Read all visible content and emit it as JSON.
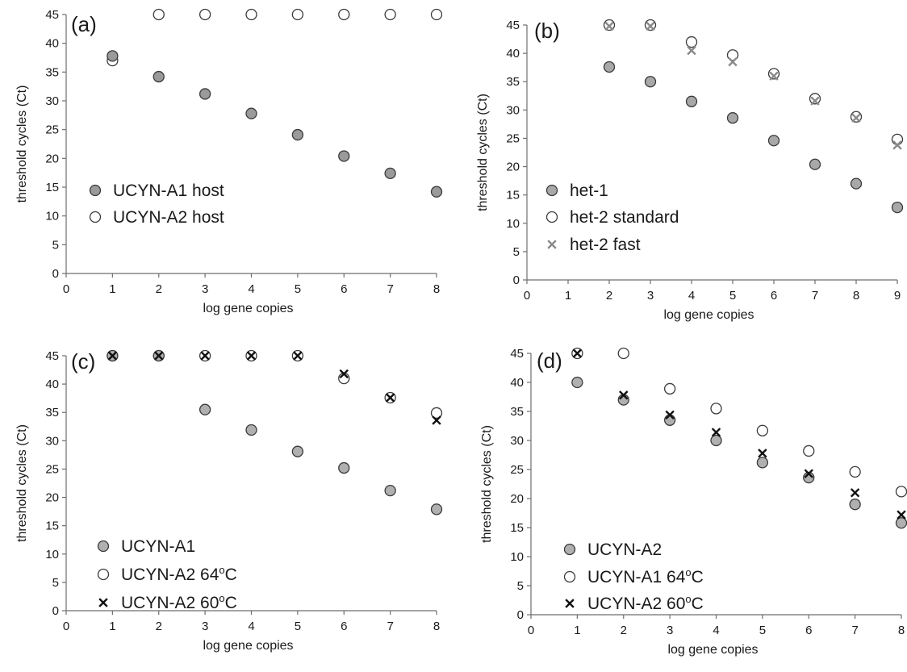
{
  "chart_data": [
    {
      "type": "scatter",
      "panel": "(a)",
      "xlabel": "log gene copies",
      "ylabel": "threshold cycles (Ct)",
      "xlim": [
        0,
        8
      ],
      "ylim": [
        0,
        45
      ],
      "xticks": [
        "0",
        "1",
        "2",
        "3",
        "4",
        "5",
        "6",
        "7",
        "8"
      ],
      "yticks": [
        "0",
        "5",
        "10",
        "15",
        "20",
        "25",
        "30",
        "35",
        "40",
        "45"
      ],
      "grid": false,
      "legend_position": "lower-left",
      "series": [
        {
          "name": "UCYN-A1 host",
          "marker": "filled-circle",
          "color": "#9a9a9a",
          "x": [
            1,
            2,
            3,
            4,
            5,
            6,
            7,
            8
          ],
          "y": [
            37.8,
            34.2,
            31.2,
            27.8,
            24.1,
            20.4,
            17.4,
            14.2
          ]
        },
        {
          "name": "UCYN-A2 host",
          "marker": "open-circle",
          "color": "#ffffff",
          "x": [
            1,
            2,
            3,
            4,
            5,
            6,
            7,
            8
          ],
          "y": [
            37.0,
            45,
            45,
            45,
            45,
            45,
            45,
            45
          ]
        }
      ]
    },
    {
      "type": "scatter",
      "panel": "(b)",
      "xlabel": "log gene copies",
      "ylabel": "threshold cycles (Ct)",
      "xlim": [
        0,
        9
      ],
      "ylim": [
        0,
        45
      ],
      "xticks": [
        "0",
        "1",
        "2",
        "3",
        "4",
        "5",
        "6",
        "7",
        "8",
        "9"
      ],
      "yticks": [
        "0",
        "5",
        "10",
        "15",
        "20",
        "25",
        "30",
        "35",
        "40",
        "45"
      ],
      "grid": false,
      "legend_position": "lower-left",
      "series": [
        {
          "name": "het-1",
          "marker": "filled-circle",
          "color": "#a8a8a8",
          "x": [
            2,
            3,
            4,
            5,
            6,
            7,
            8,
            9
          ],
          "y": [
            37.6,
            35.0,
            31.5,
            28.6,
            24.6,
            20.4,
            17.0,
            12.8
          ]
        },
        {
          "name": "het-2 standard",
          "marker": "open-circle",
          "color": "#ffffff",
          "x": [
            2,
            3,
            4,
            5,
            6,
            7,
            8,
            9
          ],
          "y": [
            45,
            45,
            42.0,
            39.7,
            36.4,
            32.0,
            28.8,
            24.8
          ]
        },
        {
          "name": "het-2 fast",
          "marker": "cross",
          "color": "#8a8a8a",
          "x": [
            2,
            3,
            4,
            5,
            6,
            7,
            8,
            9
          ],
          "y": [
            44.8,
            44.8,
            40.5,
            38.5,
            36.0,
            31.6,
            28.6,
            23.8
          ]
        }
      ]
    },
    {
      "type": "scatter",
      "panel": "(c)",
      "xlabel": "log gene copies",
      "ylabel": "threshold cycles (Ct)",
      "xlim": [
        0,
        8
      ],
      "ylim": [
        0,
        45
      ],
      "xticks": [
        "0",
        "1",
        "2",
        "3",
        "4",
        "5",
        "6",
        "7",
        "8"
      ],
      "yticks": [
        "0",
        "5",
        "10",
        "15",
        "20",
        "25",
        "30",
        "35",
        "40",
        "45"
      ],
      "grid": false,
      "legend_position": "lower-left",
      "series": [
        {
          "name": "UCYN-A1",
          "marker": "filled-circle",
          "color": "#b0b0b0",
          "x": [
            1,
            2,
            3,
            4,
            5,
            6,
            7,
            8
          ],
          "y": [
            45,
            45,
            35.5,
            31.9,
            28.1,
            25.2,
            21.2,
            17.9
          ]
        },
        {
          "name": "UCYN-A2 64",
          "name_sup": "o",
          "name_suffix": "C",
          "marker": "open-circle",
          "color": "#ffffff",
          "x": [
            1,
            2,
            3,
            4,
            5,
            6,
            7,
            8
          ],
          "y": [
            45,
            45,
            45,
            45,
            45,
            41.0,
            37.6,
            34.9
          ]
        },
        {
          "name": "UCYN-A2 60",
          "name_sup": "o",
          "name_suffix": "C",
          "marker": "cross",
          "color": "#111111",
          "x": [
            1,
            2,
            3,
            4,
            5,
            6,
            7,
            8
          ],
          "y": [
            45,
            45,
            45,
            45,
            45,
            41.8,
            37.6,
            33.6
          ]
        }
      ]
    },
    {
      "type": "scatter",
      "panel": "(d)",
      "xlabel": "log gene copies",
      "ylabel": "threshold cycles (Ct)",
      "xlim": [
        0,
        8
      ],
      "ylim": [
        0,
        45
      ],
      "xticks": [
        "0",
        "1",
        "2",
        "3",
        "4",
        "5",
        "6",
        "7",
        "8"
      ],
      "yticks": [
        "0",
        "5",
        "10",
        "15",
        "20",
        "25",
        "30",
        "35",
        "40",
        "45"
      ],
      "grid": false,
      "legend_position": "lower-left",
      "series": [
        {
          "name": "UCYN-A2",
          "marker": "filled-circle",
          "color": "#b0b0b0",
          "x": [
            1,
            2,
            3,
            4,
            5,
            6,
            7,
            8
          ],
          "y": [
            40.0,
            37.0,
            33.5,
            30.0,
            26.2,
            23.6,
            19.0,
            15.8
          ]
        },
        {
          "name": "UCYN-A1 64",
          "name_sup": "o",
          "name_suffix": "C",
          "marker": "open-circle",
          "color": "#ffffff",
          "x": [
            1,
            2,
            3,
            4,
            5,
            6,
            7,
            8
          ],
          "y": [
            45,
            45,
            38.9,
            35.5,
            31.7,
            28.2,
            24.6,
            21.2
          ]
        },
        {
          "name": "UCYN-A2 60",
          "name_sup": "o",
          "name_suffix": "C",
          "marker": "cross",
          "color": "#111111",
          "x": [
            1,
            2,
            3,
            4,
            5,
            6,
            7,
            8
          ],
          "y": [
            45,
            37.8,
            34.4,
            31.4,
            27.8,
            24.3,
            21.0,
            17.2
          ]
        }
      ]
    }
  ]
}
